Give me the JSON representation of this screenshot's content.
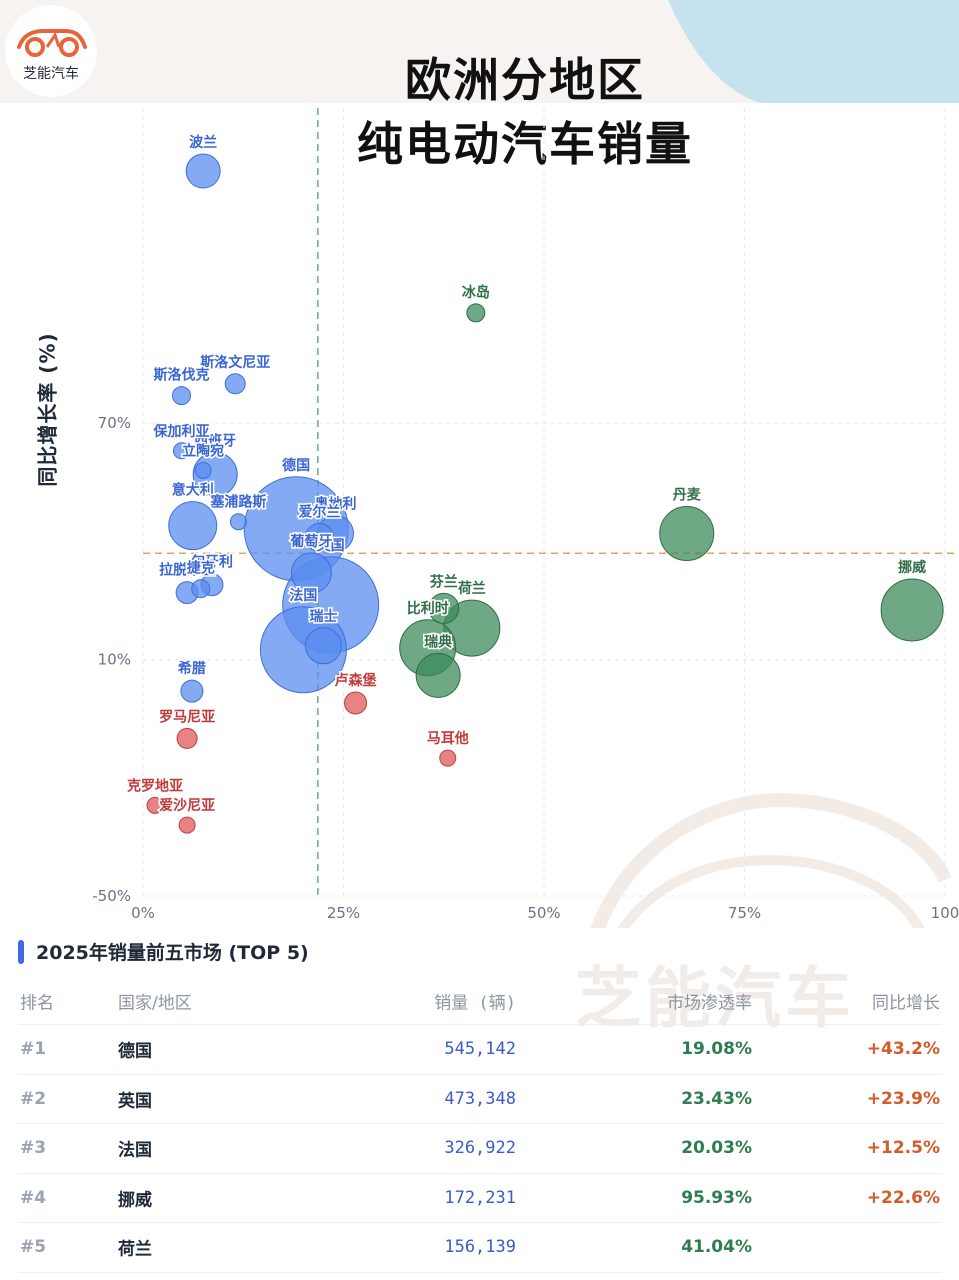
{
  "header": {
    "logo_text": "芝能汽车",
    "title_line1": "欧洲分地区",
    "title_line2": "纯电动汽车销量"
  },
  "watermark": "芝能汽车",
  "chart_data": {
    "type": "scatter",
    "ylabel": "同比增长率 (%)",
    "xlabel": "",
    "xlim": [
      0,
      100
    ],
    "ylim": [
      -50,
      150
    ],
    "xticks": [
      0,
      25,
      50,
      75,
      100
    ],
    "xtick_labels": [
      "0%",
      "25%",
      "50%",
      "75%",
      "100"
    ],
    "yticks": [
      -50,
      10,
      70
    ],
    "ytick_labels": [
      "-50%",
      "10%",
      "70%"
    ],
    "reference_lines": {
      "x": 21.8,
      "y": 37
    },
    "colors": {
      "blue": "#5b8ef0",
      "green": "#3d8b5c",
      "red": "#de5a5a",
      "ref_x": "#6aa889",
      "ref_y": "#e8a35a"
    },
    "points": [
      {
        "label": "波兰",
        "x": 7.5,
        "y": 134,
        "r": 17,
        "group": "blue"
      },
      {
        "label": "冰岛",
        "x": 41.5,
        "y": 98,
        "r": 9,
        "group": "green"
      },
      {
        "label": "斯洛文尼亚",
        "x": 11.5,
        "y": 80,
        "r": 10,
        "group": "blue"
      },
      {
        "label": "斯洛伐克",
        "x": 4.8,
        "y": 77,
        "r": 9,
        "group": "blue"
      },
      {
        "label": "西班牙",
        "x": 9,
        "y": 57,
        "r": 22,
        "group": "blue"
      },
      {
        "label": "立陶宛",
        "x": 7.5,
        "y": 58,
        "r": 8,
        "group": "blue"
      },
      {
        "label": "保加利亚",
        "x": 4.8,
        "y": 63,
        "r": 8,
        "group": "blue"
      },
      {
        "label": "德国",
        "x": 19.1,
        "y": 43.2,
        "r": 52,
        "group": "blue"
      },
      {
        "label": "意大利",
        "x": 6.2,
        "y": 44,
        "r": 24,
        "group": "blue"
      },
      {
        "label": "塞浦路斯",
        "x": 11.9,
        "y": 45,
        "r": 8,
        "group": "blue"
      },
      {
        "label": "奥地利",
        "x": 24,
        "y": 42,
        "r": 18,
        "group": "blue"
      },
      {
        "label": "爱尔兰",
        "x": 22,
        "y": 41,
        "r": 14,
        "group": "blue"
      },
      {
        "label": "葡萄牙",
        "x": 21,
        "y": 32,
        "r": 20,
        "group": "blue"
      },
      {
        "label": "英国",
        "x": 23.4,
        "y": 23.9,
        "r": 48,
        "group": "blue"
      },
      {
        "label": "法国",
        "x": 20,
        "y": 12.5,
        "r": 43,
        "group": "blue"
      },
      {
        "label": "瑞士",
        "x": 22.5,
        "y": 13.5,
        "r": 18,
        "group": "blue"
      },
      {
        "label": "拉脱维亚",
        "x": 5.5,
        "y": 27,
        "r": 11,
        "group": "blue"
      },
      {
        "label": "匈牙利",
        "x": 8.6,
        "y": 29,
        "r": 11,
        "group": "blue"
      },
      {
        "label": "捷克",
        "x": 7.2,
        "y": 28,
        "r": 9,
        "group": "blue"
      },
      {
        "label": "希腊",
        "x": 6.1,
        "y": 2,
        "r": 11,
        "group": "blue"
      },
      {
        "label": "丹麦",
        "x": 67.8,
        "y": 42,
        "r": 27,
        "group": "green"
      },
      {
        "label": "挪威",
        "x": 95.9,
        "y": 22.6,
        "r": 31,
        "group": "green"
      },
      {
        "label": "荷兰",
        "x": 41,
        "y": 18,
        "r": 28,
        "group": "green"
      },
      {
        "label": "芬兰",
        "x": 37.5,
        "y": 23,
        "r": 15,
        "group": "green"
      },
      {
        "label": "比利时",
        "x": 35.5,
        "y": 13,
        "r": 28,
        "group": "green"
      },
      {
        "label": "瑞典",
        "x": 36.8,
        "y": 6,
        "r": 22,
        "group": "green"
      },
      {
        "label": "卢森堡",
        "x": 26.5,
        "y": -1,
        "r": 11,
        "group": "red"
      },
      {
        "label": "罗马尼亚",
        "x": 5.5,
        "y": -10,
        "r": 10,
        "group": "red"
      },
      {
        "label": "马耳他",
        "x": 38,
        "y": -15,
        "r": 8,
        "group": "red"
      },
      {
        "label": "克罗地亚",
        "x": 1.5,
        "y": -27,
        "r": 8,
        "group": "red"
      },
      {
        "label": "爱沙尼亚",
        "x": 5.5,
        "y": -32,
        "r": 8,
        "group": "red"
      }
    ]
  },
  "top5": {
    "title": "2025年销量前五市场 (TOP 5)",
    "columns": [
      "排名",
      "国家/地区",
      "销量 (辆)",
      "市场渗透率",
      "同比增长"
    ],
    "rows": [
      {
        "rank": "#1",
        "country": "德国",
        "sales": "545,142",
        "penetration": "19.08%",
        "growth": "+43.2%"
      },
      {
        "rank": "#2",
        "country": "英国",
        "sales": "473,348",
        "penetration": "23.43%",
        "growth": "+23.9%"
      },
      {
        "rank": "#3",
        "country": "法国",
        "sales": "326,922",
        "penetration": "20.03%",
        "growth": "+12.5%"
      },
      {
        "rank": "#4",
        "country": "挪威",
        "sales": "172,231",
        "penetration": "95.93%",
        "growth": "+22.6%"
      },
      {
        "rank": "#5",
        "country": "荷兰",
        "sales": "156,139",
        "penetration": "41.04%",
        "growth": ""
      }
    ]
  }
}
